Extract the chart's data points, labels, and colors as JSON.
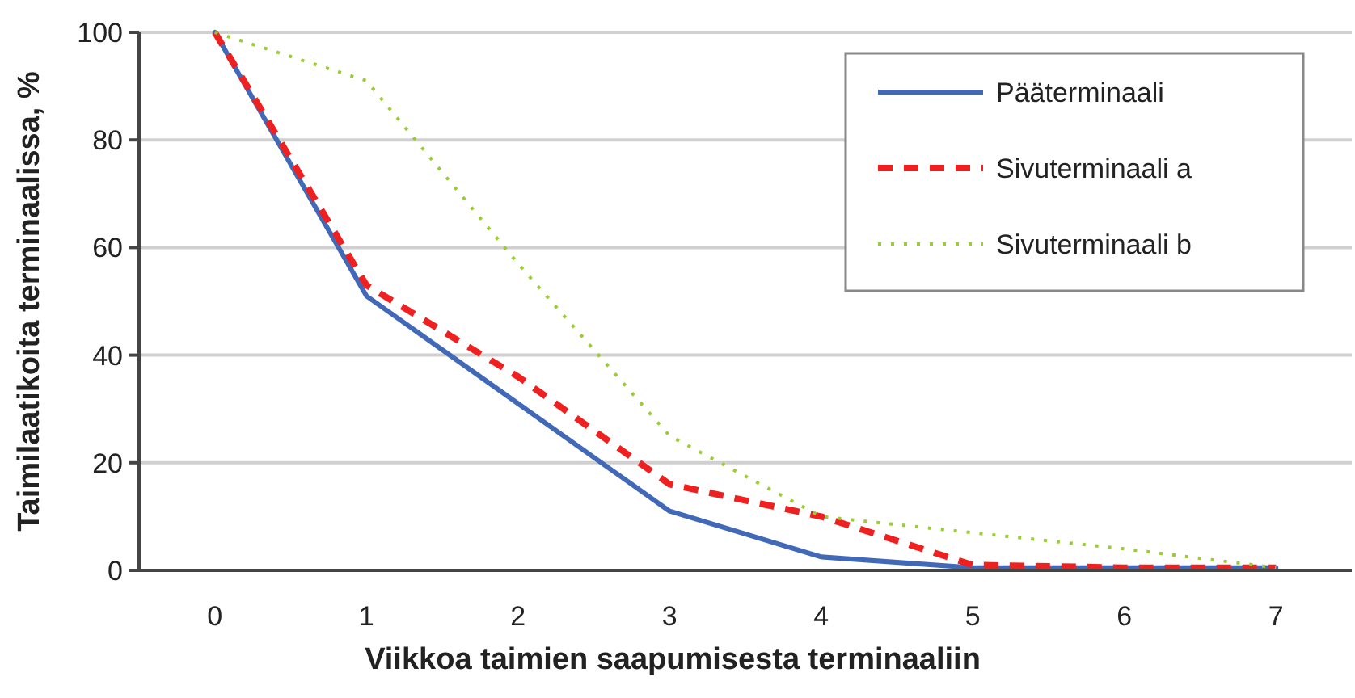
{
  "chart_data": {
    "type": "line",
    "xlabel": "Viikkoa taimien saapumisesta terminaaliin",
    "ylabel": "Taimilaatikoita terminaalissa, %",
    "categories": [
      "0",
      "1",
      "2",
      "3",
      "4",
      "5",
      "6",
      "7"
    ],
    "series": [
      {
        "name": "Pääterminaali",
        "color": "#4169b8",
        "line_style": "solid",
        "values": [
          100,
          51,
          31,
          11,
          2.5,
          0.5,
          0.5,
          0.5
        ]
      },
      {
        "name": "Sivuterminaali a",
        "color": "#ee2020",
        "line_style": "dashed",
        "values": [
          100,
          53,
          36,
          16,
          10,
          1,
          0.5,
          0.5
        ]
      },
      {
        "name": "Sivuterminaali b",
        "color": "#9acd32",
        "line_style": "dotted",
        "values": [
          100,
          91,
          57,
          25,
          10,
          7,
          4,
          0.5
        ]
      }
    ],
    "ylim": [
      0,
      100
    ],
    "yticks": [
      0,
      20,
      40,
      60,
      80,
      100
    ],
    "grid": "y",
    "legend": "top right",
    "marker": "none"
  }
}
